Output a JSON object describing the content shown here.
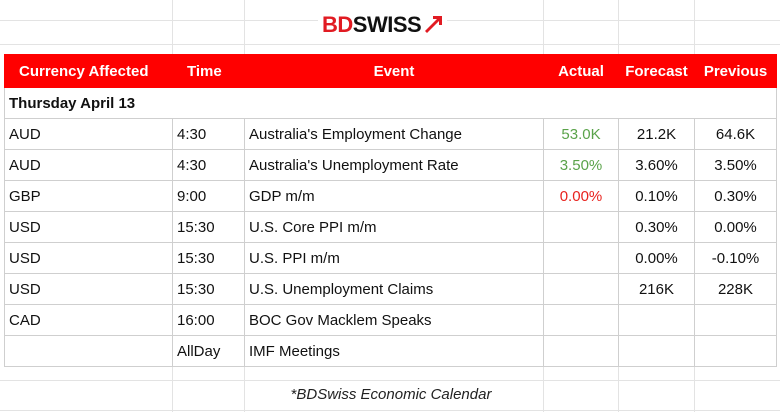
{
  "brand": {
    "name_red": "BD",
    "name_dark": "SWISS",
    "accent_color": "#e11b22"
  },
  "table": {
    "headers": [
      "Currency Affected",
      "Time",
      "Event",
      "Actual",
      "Forecast",
      "Previous"
    ],
    "header_color": "#ff0000",
    "day_label": "Thursday April 13",
    "rows": [
      {
        "currency": "AUD",
        "time": "4:30",
        "event": "Australia's Employment Change",
        "actual": "53.0K",
        "actual_color": "green",
        "forecast": "21.2K",
        "previous": "64.6K"
      },
      {
        "currency": "AUD",
        "time": "4:30",
        "event": "Australia's Unemployment Rate",
        "actual": "3.50%",
        "actual_color": "green",
        "forecast": "3.60%",
        "previous": "3.50%"
      },
      {
        "currency": "GBP",
        "time": "9:00",
        "event": "GDP m/m",
        "actual": "0.00%",
        "actual_color": "red",
        "forecast": "0.10%",
        "previous": "0.30%"
      },
      {
        "currency": "USD",
        "time": "15:30",
        "event": "U.S. Core PPI m/m",
        "actual": "",
        "actual_color": "",
        "forecast": "0.30%",
        "previous": "0.00%"
      },
      {
        "currency": "USD",
        "time": "15:30",
        "event": "U.S. PPI m/m",
        "actual": "",
        "actual_color": "",
        "forecast": "0.00%",
        "previous": "-0.10%"
      },
      {
        "currency": "USD",
        "time": "15:30",
        "event": "U.S. Unemployment Claims",
        "actual": "",
        "actual_color": "",
        "forecast": "216K",
        "previous": "228K"
      },
      {
        "currency": "CAD",
        "time": "16:00",
        "event": "BOC Gov Macklem Speaks",
        "actual": "",
        "actual_color": "",
        "forecast": "",
        "previous": ""
      },
      {
        "currency": "",
        "time": "AllDay",
        "event": "IMF Meetings",
        "actual": "",
        "actual_color": "",
        "forecast": "",
        "previous": ""
      }
    ]
  },
  "footer": "*BDSwiss Economic Calendar"
}
